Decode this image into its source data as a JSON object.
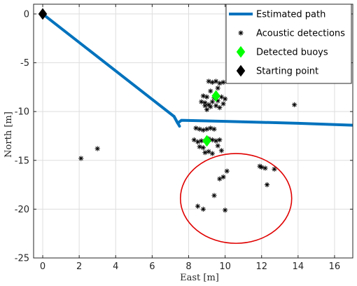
{
  "chart_data": {
    "type": "scatter",
    "xlabel": "East [m]",
    "ylabel": "North [m]",
    "xlim": [
      -0.5,
      17
    ],
    "ylim": [
      -25,
      1
    ],
    "xticks": [
      0,
      2,
      4,
      6,
      8,
      10,
      12,
      14,
      16
    ],
    "yticks": [
      0,
      -5,
      -10,
      -15,
      -20,
      -25
    ],
    "grid": true,
    "legend_position": "top-right",
    "series": [
      {
        "name": "Estimated path",
        "kind": "line",
        "color": "#0072BD",
        "x": [
          0,
          7.2,
          7.4,
          7.6,
          10,
          12,
          14,
          17
        ],
        "y": [
          0,
          -10.5,
          -11.2,
          -10.9,
          -11.0,
          -11.1,
          -11.2,
          -11.4
        ],
        "branch": {
          "x": [
            7.2,
            7.5
          ],
          "y": [
            -10.5,
            -11.5
          ]
        }
      },
      {
        "name": "Acoustic detections",
        "kind": "marker",
        "marker": "asterisk",
        "color": "#000000",
        "x": [
          9.1,
          9.3,
          9.5,
          9.7,
          9.9,
          9.2,
          9.6,
          8.8,
          9.0,
          9.4,
          9.8,
          10.0,
          8.7,
          8.9,
          9.3,
          9.6,
          9.9,
          8.9,
          9.1,
          9.2,
          9.5,
          9.0,
          9.7,
          13.8,
          8.4,
          8.6,
          8.8,
          9.0,
          9.2,
          9.4,
          8.3,
          8.5,
          8.7,
          9.1,
          9.3,
          9.5,
          9.7,
          8.6,
          8.8,
          8.9,
          9.1,
          9.3,
          9.6,
          9.8,
          2.1,
          3.0,
          10.1,
          9.9,
          9.7,
          11.9,
          12.0,
          12.2,
          12.7,
          12.3,
          9.4,
          8.5,
          8.8,
          10.0
        ],
        "y": [
          -6.9,
          -7.0,
          -6.9,
          -7.1,
          -7.0,
          -7.9,
          -7.6,
          -8.4,
          -8.5,
          -8.6,
          -8.5,
          -8.7,
          -9.0,
          -9.1,
          -9.0,
          -8.9,
          -9.2,
          -9.4,
          -9.3,
          -9.5,
          -9.4,
          -9.8,
          -9.6,
          -9.3,
          -11.7,
          -11.8,
          -11.9,
          -11.8,
          -11.7,
          -11.8,
          -12.9,
          -13.1,
          -13.0,
          -12.8,
          -12.9,
          -13.0,
          -12.9,
          -13.6,
          -13.7,
          -14.2,
          -14.1,
          -14.3,
          -13.5,
          -14.0,
          -14.8,
          -13.8,
          -16.1,
          -16.7,
          -16.9,
          -15.6,
          -15.7,
          -15.8,
          -15.9,
          -17.5,
          -18.6,
          -19.7,
          -20.0,
          -20.1
        ]
      },
      {
        "name": "Detected buoys",
        "kind": "marker",
        "marker": "diamond",
        "color": "#00FF00",
        "x": [
          9.5,
          9.0
        ],
        "y": [
          -8.4,
          -13.0
        ]
      },
      {
        "name": "Starting point",
        "kind": "marker",
        "marker": "diamond",
        "color": "#000000",
        "x": [
          0
        ],
        "y": [
          0
        ]
      }
    ],
    "annotations": [
      {
        "type": "ellipse",
        "color": "#E00000",
        "cx": 10.6,
        "cy": -18.9,
        "rx": 3.05,
        "ry": 4.6
      }
    ]
  }
}
